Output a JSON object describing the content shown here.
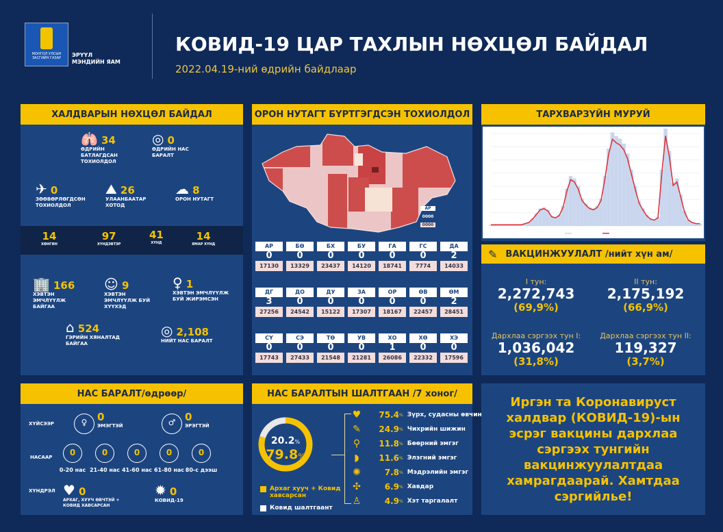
{
  "header": {
    "logo_text": "МОНГОЛ УЛСЫН ЗАСГИЙН ГАЗАР",
    "ministry": [
      "ЭРҮҮЛ",
      "МЭНДИЙН ЯАМ"
    ],
    "title": "КОВИД-19 ЦАР ТАХЛЫН НӨХЦӨЛ БАЙДАЛ",
    "subtitle": "2022.04.19-ний өдрийн байдлаар"
  },
  "infection": {
    "title": "ХАЛДВАРЫН НӨХЦӨЛ БАЙДАЛ",
    "daily_confirmed": {
      "value": "34",
      "label": "ӨДРИЙН БАТЛАГДСАН ТОХИОЛДОЛ",
      "icon": "lungs-icon"
    },
    "daily_deaths": {
      "value": "0",
      "label": "ӨДРИЙН НАС БАРАЛТ",
      "icon": "person-icon"
    },
    "imported": {
      "value": "0",
      "label": "ЗӨӨВӨРЛӨГДСӨН ТОХИОЛДОЛ",
      "icon": "airplane-icon"
    },
    "ulaanbaatar": {
      "value": "26",
      "label": "УЛААНБААТАР ХОТОД",
      "icon": "monument-icon"
    },
    "provinces": {
      "value": "8",
      "label": "ОРОН НУТАГТ",
      "icon": "mongolia-map-icon"
    },
    "severity": [
      {
        "value": "14",
        "label": "ХӨНГӨН"
      },
      {
        "value": "97",
        "label": "ХҮНДЭВТЭР"
      },
      {
        "value": "41",
        "label": "ХҮНД"
      },
      {
        "value": "14",
        "label": "ЯМАР ХҮНД"
      }
    ],
    "hospitalized": {
      "value": "166",
      "label": "ХЭВТЭН ЭМЧЛҮҮЛЖ БАЙГАА",
      "icon": "hospital-icon"
    },
    "children": {
      "value": "9",
      "label": "ХЭВТЭН ЭМЧЛҮҮЛЖ БУЙ ХҮҮХЭД",
      "icon": "baby-icon"
    },
    "pregnant": {
      "value": "1",
      "label": "ХЭВТЭН ЭМЧЛҮҮЛЖ БУЙ ЖИРЭМСЭН",
      "icon": "pregnant-icon"
    },
    "home_care": {
      "value": "524",
      "label": "ГЭРИЙН ХЯНАЛТАД БАЙГАА",
      "icon": "home-icon"
    },
    "total_deaths": {
      "value": "2,108",
      "label": "НИЙТ НАС БАРАЛТ",
      "icon": "person-icon"
    }
  },
  "regional": {
    "title": "ОРОН НУТАГТ БҮРТГЭГДСЭН ТОХИОЛДОЛ",
    "legend": {
      "abbr": "АР",
      "daily": "0000",
      "total": "0000"
    },
    "provinces": [
      {
        "code": "АР",
        "cases": "0",
        "total": "17130"
      },
      {
        "code": "БӨ",
        "cases": "0",
        "total": "13329"
      },
      {
        "code": "БХ",
        "cases": "0",
        "total": "23437"
      },
      {
        "code": "БУ",
        "cases": "0",
        "total": "14120"
      },
      {
        "code": "ГА",
        "cases": "0",
        "total": "18741"
      },
      {
        "code": "ГС",
        "cases": "0",
        "total": "7774"
      },
      {
        "code": "ДА",
        "cases": "2",
        "total": "14033"
      },
      {
        "code": "ДГ",
        "cases": "3",
        "total": "27256"
      },
      {
        "code": "ДО",
        "cases": "0",
        "total": "24542"
      },
      {
        "code": "ДУ",
        "cases": "0",
        "total": "15122"
      },
      {
        "code": "ЗА",
        "cases": "0",
        "total": "17307"
      },
      {
        "code": "ОР",
        "cases": "0",
        "total": "18167"
      },
      {
        "code": "ӨВ",
        "cases": "0",
        "total": "22457"
      },
      {
        "code": "ӨМ",
        "cases": "2",
        "total": "28451"
      },
      {
        "code": "СҮ",
        "cases": "0",
        "total": "17743"
      },
      {
        "code": "СЭ",
        "cases": "0",
        "total": "27433"
      },
      {
        "code": "ТӨ",
        "cases": "0",
        "total": "21548"
      },
      {
        "code": "УВ",
        "cases": "0",
        "total": "21281"
      },
      {
        "code": "ХО",
        "cases": "1",
        "total": "26086"
      },
      {
        "code": "ХӨ",
        "cases": "0",
        "total": "22332"
      },
      {
        "code": "ХЭ",
        "cases": "0",
        "total": "17596"
      }
    ]
  },
  "curve": {
    "title": "ТАРХВАРЗҮЙН МУРУЙ",
    "colors": {
      "bars": "#c9d6ee",
      "line": "#d9353b"
    }
  },
  "chart_data": {
    "type": "area",
    "title": "",
    "xlabel": "",
    "ylabel": "",
    "grid": true,
    "series": [
      {
        "values": [
          1,
          1,
          1,
          1,
          1,
          1,
          1,
          1,
          1,
          2,
          3,
          6,
          10,
          14,
          15,
          13,
          8,
          7,
          9,
          16,
          30,
          40,
          38,
          32,
          22,
          18,
          15,
          14,
          16,
          22,
          40,
          62,
          75,
          72,
          70,
          66,
          58,
          45,
          32,
          20,
          14,
          9,
          6,
          5,
          7,
          45,
          78,
          60,
          35,
          38,
          25,
          12,
          5,
          3,
          2,
          2
        ]
      }
    ]
  },
  "vaccination": {
    "title": "ВАКЦИНЖУУЛАЛТ /нийт хүн ам/",
    "icon": "syringe-icon",
    "doses": [
      {
        "label": "I тун:",
        "value": "2,272,743",
        "pct": "(69,9%)"
      },
      {
        "label": "II тун:",
        "value": "2,175,192",
        "pct": "(66,9%)"
      },
      {
        "label": "Дархлаа сэргээх тун I:",
        "value": "1,036,042",
        "pct": "(31,8%)"
      },
      {
        "label": "Дархлаа сэргээх тун II:",
        "value": "119,327",
        "pct": "(3,7%)"
      }
    ]
  },
  "deaths": {
    "title": "НАС БАРАЛТ/өдрөөр/",
    "by_sex_label": "ХҮЙСЭЭР",
    "female": {
      "value": "0",
      "label": "ЭМЭГТЭЙ"
    },
    "male": {
      "value": "0",
      "label": "ЭРЭГТЭЙ"
    },
    "by_age_label": "НАСААР",
    "ages": [
      {
        "value": "0",
        "label": "0-20 нас"
      },
      {
        "value": "0",
        "label": "21-40 нас"
      },
      {
        "value": "0",
        "label": "41-60 нас"
      },
      {
        "value": "0",
        "label": "61-80 нас"
      },
      {
        "value": "0",
        "label": "80-с дээш"
      }
    ],
    "by_complication_label": "ХҮНДРЭЛ",
    "chronic": {
      "value": "0",
      "label": "АРХАГ, ХУУЧ ӨВЧТЭЙ + КОВИД ХАВСАРСАН"
    },
    "covid": {
      "value": "0",
      "label": "КОВИД-19"
    }
  },
  "causes": {
    "title": "НАС БАРАЛТЫН ШАЛТГААН /7 хоног/",
    "donut": {
      "covid_only_pct": 20.2,
      "comorbid_pct": 79.8,
      "covid_only_text": "20.2",
      "comorbid_text": "79.8",
      "pct_sign": "%"
    },
    "legend": {
      "comorbid": "Архаг хууч + Ковид хавсарсан",
      "covid_only": "Ковид шалтгаант"
    },
    "items": [
      {
        "pct": "75.4",
        "label": "Зүрх, судасны өвчин",
        "icon": "heart-icon"
      },
      {
        "pct": "24.9",
        "label": "Чихрийн шижин",
        "icon": "syringe-icon"
      },
      {
        "pct": "11.8",
        "label": "Бөөрний эмгэг",
        "icon": "kidney-icon"
      },
      {
        "pct": "11.6",
        "label": "Элэгний эмгэг",
        "icon": "liver-icon"
      },
      {
        "pct": "7.8",
        "label": "Мэдрэлийн эмгэг",
        "icon": "brain-icon"
      },
      {
        "pct": "6.9",
        "label": "Хавдар",
        "icon": "tumor-icon"
      },
      {
        "pct": "4.9",
        "label": "Хэт таргалалт",
        "icon": "obesity-icon"
      }
    ]
  },
  "message": "Иргэн та Коронавируст халдвар (КОВИД-19)-ын эсрэг вакцины дархлаа сэргээх тунгийн вакцинжуулалтдаа хамрагдаарай. Хамтдаа сэргийлье!"
}
